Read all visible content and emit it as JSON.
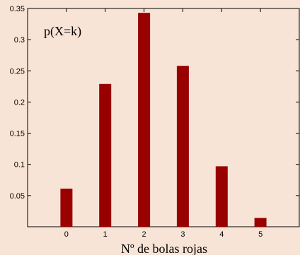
{
  "chart_data": {
    "type": "bar",
    "title": "",
    "annotation": "p(X=k)",
    "xlabel": "Nº de bolas rojas",
    "ylabel": "",
    "categories": [
      "0",
      "1",
      "2",
      "3",
      "4",
      "5"
    ],
    "x": [
      0,
      1,
      2,
      3,
      4,
      5
    ],
    "values": [
      0.061,
      0.229,
      0.343,
      0.258,
      0.097,
      0.014
    ],
    "xlim": [
      -1,
      6
    ],
    "ylim": [
      0,
      0.35
    ],
    "yticks": [
      0.05,
      0.1,
      0.15,
      0.2,
      0.25,
      0.3,
      0.35
    ],
    "ytick_labels": [
      "0.05",
      "0.1",
      "0.15",
      "0.2",
      "0.25",
      "0.3",
      "0.35"
    ],
    "bar_color": "#990000",
    "background_color": "#f8e4d6",
    "grid": false,
    "legend": "none"
  }
}
